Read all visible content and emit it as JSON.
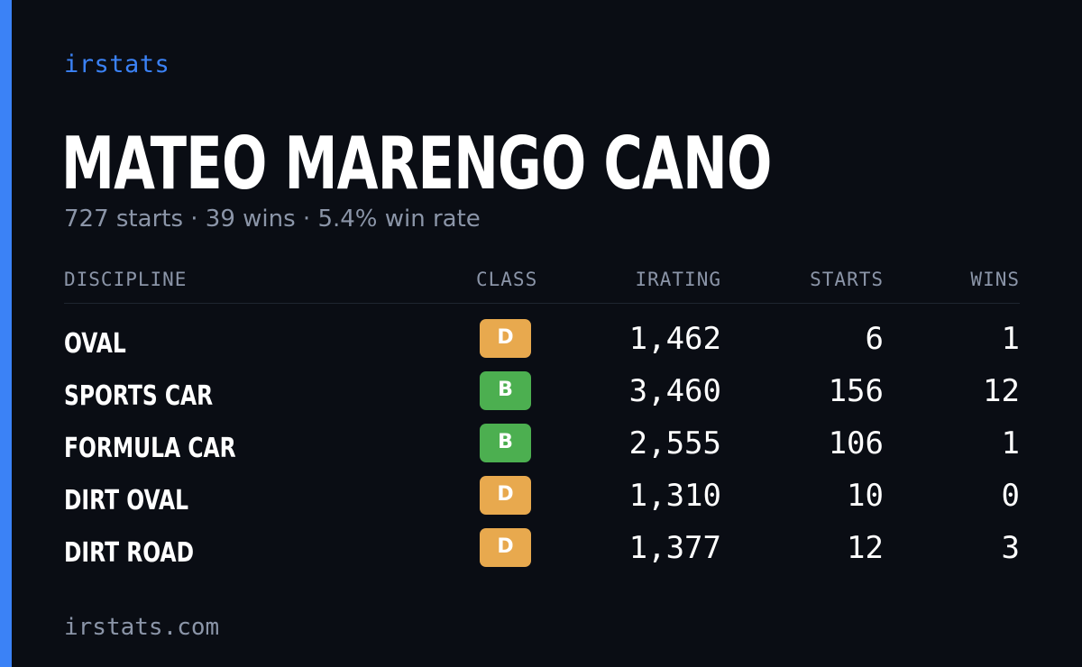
{
  "brand": "irstats",
  "driver": {
    "name": "MATEO MARENGO CANO",
    "summary": "727 starts · 39 wins · 5.4% win rate"
  },
  "table": {
    "headers": {
      "discipline": "DISCIPLINE",
      "class": "CLASS",
      "irating": "IRATING",
      "starts": "STARTS",
      "wins": "WINS"
    },
    "rows": [
      {
        "discipline": "OVAL",
        "class": "D",
        "irating": "1,462",
        "starts": "6",
        "wins": "1"
      },
      {
        "discipline": "SPORTS CAR",
        "class": "B",
        "irating": "3,460",
        "starts": "156",
        "wins": "12"
      },
      {
        "discipline": "FORMULA CAR",
        "class": "B",
        "irating": "2,555",
        "starts": "106",
        "wins": "1"
      },
      {
        "discipline": "DIRT OVAL",
        "class": "D",
        "irating": "1,310",
        "starts": "10",
        "wins": "0"
      },
      {
        "discipline": "DIRT ROAD",
        "class": "D",
        "irating": "1,377",
        "starts": "12",
        "wins": "3"
      }
    ]
  },
  "class_colors": {
    "D": "#e8a94e",
    "B": "#4caf50"
  },
  "colors": {
    "accent": "#3b82f6",
    "background": "#0a0d14",
    "muted": "#8b95a8"
  },
  "footer": "irstats.com"
}
